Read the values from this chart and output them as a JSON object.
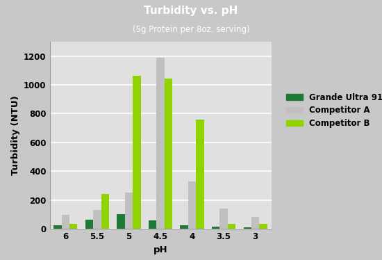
{
  "title": "Turbidity vs. pH",
  "subtitle": "(5g Protein per 8oz. serving)",
  "xlabel": "pH",
  "ylabel": "Turbidity (NTU)",
  "categories": [
    "6",
    "5.5",
    "5",
    "4.5",
    "4",
    "3.5",
    "3"
  ],
  "series": {
    "Grande Ultra 9100": [
      25,
      65,
      100,
      60,
      25,
      15,
      10
    ],
    "Competitor A": [
      95,
      130,
      250,
      1190,
      330,
      140,
      85
    ],
    "Competitor B": [
      35,
      240,
      1065,
      1045,
      760,
      35,
      35
    ]
  },
  "colors": {
    "Grande Ultra 9100": "#1e7a34",
    "Competitor A": "#c0c0c0",
    "Competitor B": "#8fd400"
  },
  "ylim": [
    0,
    1300
  ],
  "yticks": [
    0,
    200,
    400,
    600,
    800,
    1000,
    1200
  ],
  "title_bg": "#000000",
  "title_color": "#ffffff",
  "plot_bg": "#e0e0e0",
  "fig_bg": "#c8c8c8",
  "bar_width": 0.25,
  "legend_fontsize": 8.5,
  "axis_label_fontsize": 9.5,
  "tick_fontsize": 8.5
}
